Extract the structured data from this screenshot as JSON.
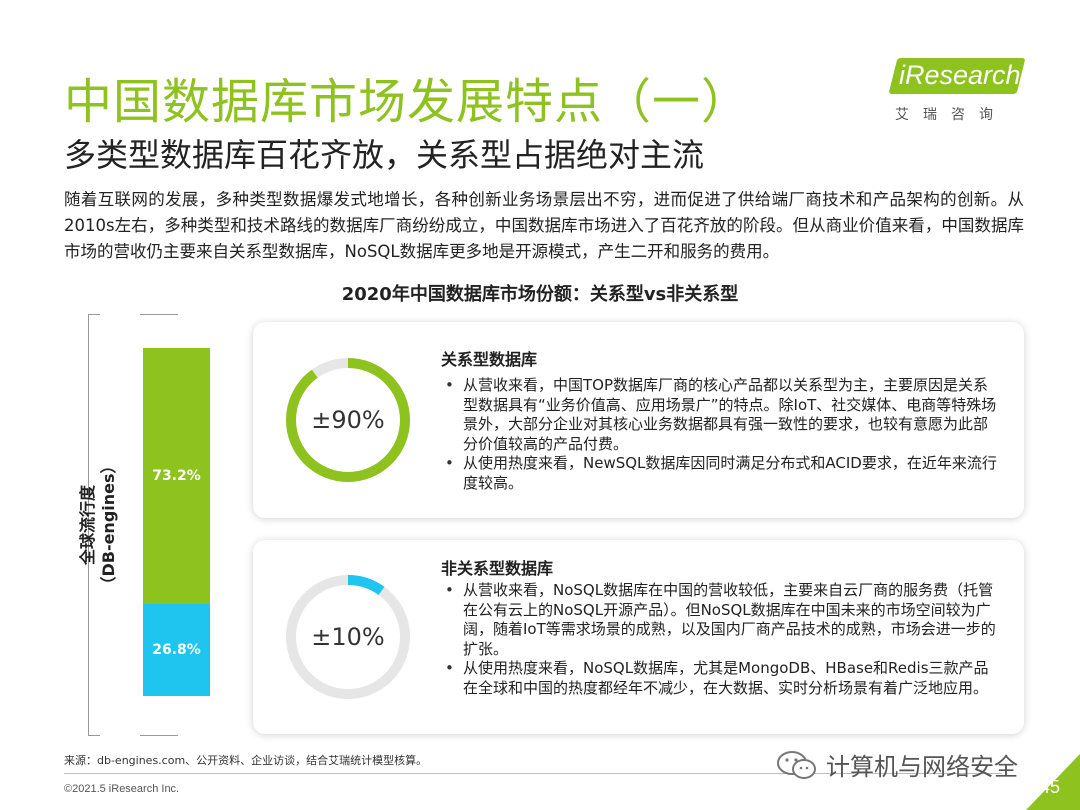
{
  "header": {
    "title": "中国数据库市场发展特点（一）",
    "subtitle": "多类型数据库百花齐放，关系型占据绝对主流"
  },
  "logo": {
    "brand": "iResearch",
    "cn": "艾瑞咨询",
    "color": "#8dc21f"
  },
  "intro": "随着互联网的发展，多种类型数据爆发式地增长，各种创新业务场景层出不穷，进而促进了供给端厂商技术和产品架构的创新。从2010s左右，多种类型和技术路线的数据库厂商纷纷成立，中国数据库市场进入了百花齐放的阶段。但从商业价值来看，中国数据库市场的营收仍主要来自关系型数据库，NoSQL数据库更多地是开源模式，产生二开和服务的费用。",
  "chart_data": {
    "type": "bar",
    "title": "2020年中国数据库市场份额：关系型vs非关系型",
    "ylabel": "全球流行度\n（DB-engines）",
    "stacked": true,
    "series": [
      {
        "name": "关系型数据库",
        "value": 73.2,
        "label": "73.2%",
        "color": "#8dc21f"
      },
      {
        "name": "非关系型数据库",
        "value": 26.8,
        "label": "26.8%",
        "color": "#1fc5ee"
      }
    ]
  },
  "cards": [
    {
      "heading": "关系型数据库",
      "share_label": "±90%",
      "share": 0.9,
      "color": "#8dc21f",
      "bullets": [
        "从营收来看，中国TOP数据库厂商的核心产品都以关系型为主，主要原因是关系型数据具有“业务价值高、应用场景广”的特点。除IoT、社交媒体、电商等特殊场景外，大部分企业对其核心业务数据都具有强一致性的要求，也较有意愿为此部分价值较高的产品付费。",
        "从使用热度来看，NewSQL数据库因同时满足分布式和ACID要求，在近年来流行度较高。"
      ]
    },
    {
      "heading": "非关系型数据库",
      "share_label": "±10%",
      "share": 0.1,
      "color": "#1fc5ee",
      "bullets": [
        "从营收来看，NoSQL数据库在中国的营收较低，主要来自云厂商的服务费（托管在公有云上的NoSQL开源产品）。但NoSQL数据库在中国未来的市场空间较为广阔，随着IoT等需求场景的成熟，以及国内厂商产品技术的成熟，市场会进一步的扩张。",
        "从使用热度来看，NoSQL数据库，尤其是MongoDB、HBase和Redis三款产品在全球和中国的热度都经年不减少，在大数据、实时分析场景有着广泛地应用。"
      ]
    }
  ],
  "footer": {
    "source": "来源：db-engines.com、公开资料、企业访谈，结合艾瑞统计模型核算。",
    "copyright": "©2021.5 iResearch Inc.",
    "wechat": "计算机与网络安全",
    "page": "45"
  }
}
